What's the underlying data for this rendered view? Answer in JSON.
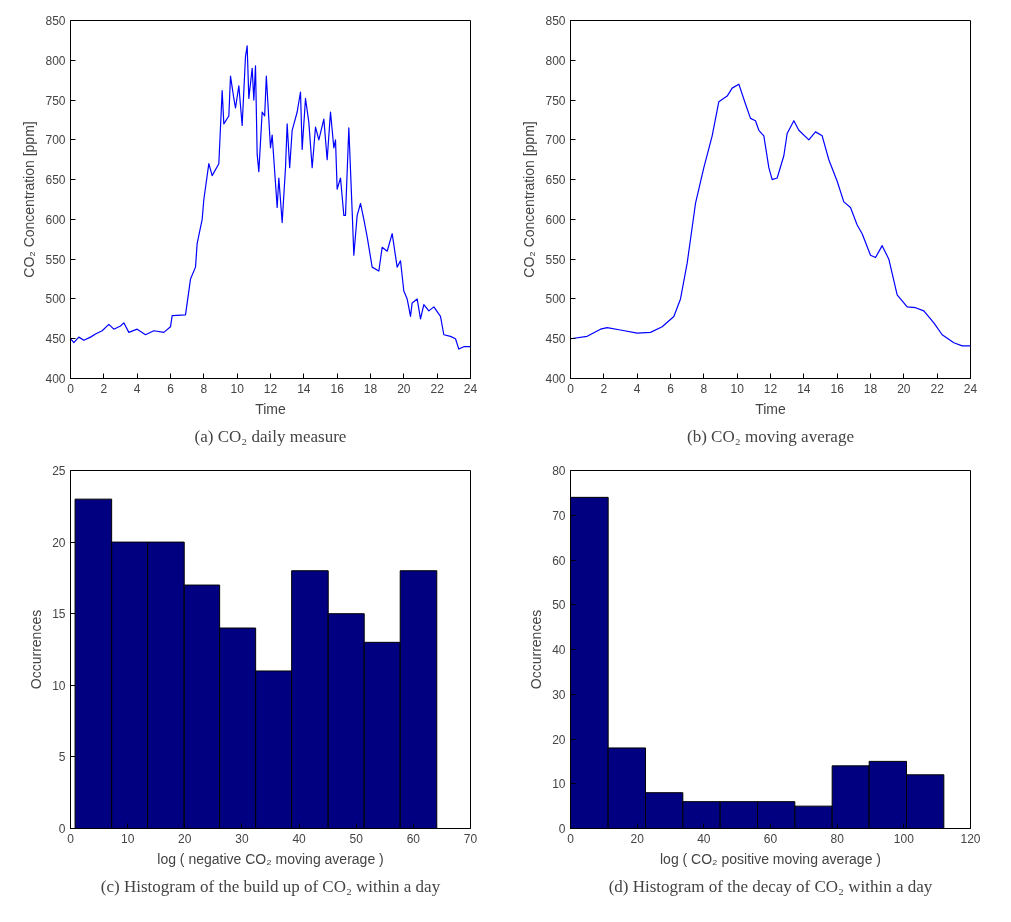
{
  "chart_data": [
    {
      "type": "line",
      "xlabel": "Time",
      "ylabel": "CO₂ Concentration [ppm]",
      "annotations": [
        "(a) CO₂ daily measure"
      ],
      "xlim": [
        0,
        24
      ],
      "ylim": [
        400,
        850
      ],
      "xticks": [
        0,
        2,
        4,
        6,
        8,
        10,
        12,
        14,
        16,
        18,
        20,
        22,
        24
      ],
      "yticks": [
        400,
        450,
        500,
        550,
        600,
        650,
        700,
        750,
        800,
        850
      ],
      "grid": false,
      "x": [
        0,
        0.2,
        0.5,
        0.8,
        1.2,
        1.5,
        1.9,
        2.3,
        2.6,
        3.0,
        3.2,
        3.5,
        4.0,
        4.5,
        5.0,
        5.6,
        6.0,
        6.1,
        6.9,
        7.2,
        7.5,
        7.6,
        7.9,
        8.0,
        8.3,
        8.5,
        8.9,
        9.1,
        9.2,
        9.5,
        9.6,
        9.8,
        9.9,
        10.1,
        10.3,
        10.5,
        10.6,
        10.7,
        10.9,
        11.0,
        11.1,
        11.2,
        11.3,
        11.5,
        11.65,
        11.75,
        12.0,
        12.1,
        12.4,
        12.5,
        12.7,
        12.9,
        13.0,
        13.15,
        13.3,
        13.6,
        13.8,
        13.9,
        14.1,
        14.3,
        14.5,
        14.6,
        14.7,
        14.9,
        15.2,
        15.4,
        15.6,
        15.8,
        15.9,
        16.0,
        16.2,
        16.4,
        16.5,
        16.7,
        16.9,
        17.0,
        17.2,
        17.4,
        17.6,
        17.8,
        18.1,
        18.5,
        18.7,
        19.0,
        19.3,
        19.6,
        19.8,
        20.0,
        20.2,
        20.4,
        20.5,
        20.8,
        21.0,
        21.2,
        21.5,
        21.8,
        22.2,
        22.4,
        22.8,
        23.1,
        23.3,
        23.6,
        24
      ],
      "series": [
        {
          "color": "#0000ff",
          "values": [
            450,
            445,
            452,
            448,
            452,
            456,
            460,
            468,
            462,
            466,
            470,
            458,
            462,
            455,
            460,
            458,
            465,
            479,
            480,
            525,
            540,
            570,
            600,
            625,
            670,
            655,
            670,
            762,
            720,
            730,
            780,
            752,
            740,
            768,
            718,
            805,
            818,
            752,
            790,
            750,
            793,
            682,
            660,
            735,
            730,
            780,
            690,
            706,
            615,
            652,
            596,
            665,
            720,
            665,
            712,
            735,
            760,
            688,
            752,
            722,
            665,
            690,
            716,
            700,
            726,
            675,
            735,
            690,
            700,
            638,
            652,
            605,
            605,
            715,
            610,
            555,
            605,
            620,
            600,
            578,
            540,
            535,
            565,
            560,
            582,
            540,
            548,
            510,
            500,
            478,
            495,
            500,
            475,
            493,
            485,
            490,
            478,
            455,
            453,
            450,
            437,
            440,
            440
          ]
        }
      ]
    },
    {
      "type": "line",
      "xlabel": "Time",
      "ylabel": "CO₂ Concentration [ppm]",
      "annotations": [
        "(b) CO₂ moving average"
      ],
      "xlim": [
        0,
        24
      ],
      "ylim": [
        400,
        850
      ],
      "xticks": [
        0,
        2,
        4,
        6,
        8,
        10,
        12,
        14,
        16,
        18,
        20,
        22,
        24
      ],
      "yticks": [
        400,
        450,
        500,
        550,
        600,
        650,
        700,
        750,
        800,
        850
      ],
      "grid": false,
      "x": [
        0,
        1,
        1.8,
        2.2,
        3,
        4,
        4.8,
        5.5,
        6.2,
        6.6,
        7,
        7.5,
        8,
        8.5,
        8.9,
        9.4,
        9.7,
        10.1,
        10.5,
        10.8,
        11.1,
        11.3,
        11.6,
        11.9,
        12.1,
        12.4,
        12.8,
        13.0,
        13.4,
        13.7,
        14.3,
        14.7,
        15.1,
        15.5,
        16.0,
        16.4,
        16.8,
        17.2,
        17.5,
        18,
        18.3,
        18.7,
        19.1,
        19.6,
        20.2,
        20.7,
        21.2,
        21.8,
        22.3,
        23,
        23.5,
        24
      ],
      "series": [
        {
          "color": "#0000ff",
          "values": [
            450,
            453,
            462,
            464,
            461,
            457,
            458,
            465,
            478,
            500,
            545,
            620,
            665,
            705,
            748,
            755,
            765,
            770,
            745,
            727,
            724,
            712,
            705,
            665,
            650,
            652,
            680,
            708,
            724,
            712,
            700,
            710,
            705,
            675,
            648,
            622,
            615,
            593,
            582,
            555,
            552,
            567,
            550,
            505,
            490,
            489,
            485,
            470,
            455,
            445,
            441,
            441
          ]
        }
      ]
    },
    {
      "type": "histogram",
      "xlabel": "log ( negative CO₂ moving average )",
      "ylabel": "Occurrences",
      "annotations": [
        "(c) Histogram of the build up of CO₂ within a day"
      ],
      "xlim": [
        0,
        70
      ],
      "ylim": [
        0,
        25
      ],
      "xticks": [
        0,
        10,
        20,
        30,
        40,
        50,
        60,
        70
      ],
      "yticks": [
        0,
        5,
        10,
        15,
        20,
        25
      ],
      "grid": false,
      "color": "#000080",
      "bins": [
        0.8,
        7.2,
        13.5,
        19.9,
        26.1,
        32.4,
        38.7,
        45.1,
        51.4,
        57.7,
        64.1
      ],
      "values": [
        23,
        20,
        20,
        17,
        14,
        11,
        18,
        15,
        13,
        18
      ]
    },
    {
      "type": "histogram",
      "xlabel": "log ( CO₂ positive moving average )",
      "ylabel": "Occurrences",
      "annotations": [
        "(d) Histogram of the decay of CO₂ within a day"
      ],
      "xlim": [
        0,
        120
      ],
      "ylim": [
        0,
        80
      ],
      "xticks": [
        0,
        20,
        40,
        60,
        80,
        100,
        120
      ],
      "yticks": [
        0,
        10,
        20,
        30,
        40,
        50,
        60,
        70,
        80
      ],
      "grid": false,
      "color": "#000080",
      "bins": [
        0,
        11.3,
        22.5,
        33.7,
        44.9,
        56.1,
        67.3,
        78.5,
        89.6,
        100.8,
        112.0
      ],
      "values": [
        74,
        18,
        8,
        6,
        6,
        6,
        5,
        14,
        15,
        12
      ]
    }
  ]
}
